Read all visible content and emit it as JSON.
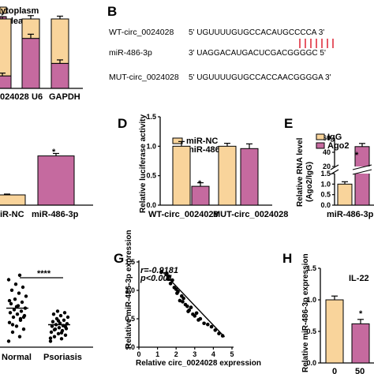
{
  "panel_letters": {
    "b": "B",
    "d": "D",
    "e": "E",
    "g": "G",
    "h": "H"
  },
  "colors": {
    "orange": "#f9d49b",
    "purple": "#c56a9f",
    "mismatch": "#e0303f",
    "stroke": "#000000"
  },
  "panel_a": {
    "legend": [
      "ytoplasm",
      "uclear"
    ],
    "xlabels": [
      "024028",
      "U6",
      "GAPDH"
    ],
    "chart_data": {
      "type": "bar",
      "categories": [
        "024028",
        "U6",
        "GAPDH"
      ],
      "series": [
        {
          "name": "uclear",
          "values": [
            0.18,
            0.72,
            0.36
          ]
        },
        {
          "name": "ytoplasm",
          "values": [
            0.82,
            0.28,
            0.64
          ]
        }
      ],
      "errors": [
        0.04,
        0.06,
        0.05
      ],
      "ylim": [
        0,
        1
      ]
    }
  },
  "panel_b": {
    "rows": [
      {
        "name": "WT-circ_0024028",
        "seq": "5' UGUUUUGUGCCACAUGCCCCA 3'"
      },
      {
        "name": "miR-486-3p",
        "seq": "3' UAGGACAUGACUCGACGGGGC 5'"
      },
      {
        "name": "MUT-circ_0024028",
        "seq": "5' UGUUUUGUGCCACCAACGGGGA 3'"
      }
    ]
  },
  "panel_c": {
    "xlabels": [
      "iR-NC",
      "miR-486-3p"
    ],
    "sig": "*",
    "chart_data": {
      "type": "bar",
      "categories": [
        "iR-NC",
        "miR-486-3p"
      ],
      "values": [
        0.25,
        1.2
      ],
      "errors": [
        0.02,
        0.06
      ]
    }
  },
  "panel_d": {
    "ylabel": "Relative luciferase activity",
    "legend": [
      "miR-NC",
      "miR-486-3p"
    ],
    "xlabels": [
      "WT-circ_0024028",
      "MUT-circ_0024028"
    ],
    "sig": "*",
    "chart_data": {
      "type": "bar",
      "categories": [
        "WT-circ_0024028",
        "MUT-circ_0024028"
      ],
      "series": [
        {
          "name": "miR-NC",
          "values": [
            1.0,
            1.0
          ]
        },
        {
          "name": "miR-486-3p",
          "values": [
            0.32,
            0.96
          ]
        }
      ],
      "errors": [
        [
          0.08,
          0.05
        ],
        [
          0.06,
          0.08
        ]
      ],
      "yticks": [
        "0.0",
        "0.5",
        "1.0",
        "1.5"
      ],
      "ylim": [
        0,
        1.5
      ]
    }
  },
  "panel_e": {
    "ylabel": "Relative RNA level",
    "ylabel2": "(Ago2/IgG)",
    "legend": [
      "IgG",
      "Ago2"
    ],
    "xlabel": "miR-486-3p",
    "sig": "*",
    "chart_data": {
      "type": "bar",
      "categories": [
        "miR-486-3p"
      ],
      "series": [
        {
          "name": "IgG",
          "values": [
            1.0
          ]
        },
        {
          "name": "Ago2",
          "values": [
            48
          ]
        }
      ],
      "errors": [
        0.08,
        4
      ],
      "yticks": [
        "0.0",
        "0.5",
        "1.0",
        "1.5",
        "20",
        "40",
        "60"
      ],
      "axis_break": [
        1.5,
        20
      ]
    }
  },
  "panel_f": {
    "xlabels": [
      "Normal",
      "Psoriasis"
    ],
    "sig": "****",
    "chart_data": {
      "type": "scatter",
      "categories": [
        "Normal",
        "Psoriasis"
      ],
      "series": [
        {
          "name": "Normal",
          "values": [
            0.2,
            0.35,
            0.5,
            0.6,
            0.7,
            0.82,
            0.9,
            1.0,
            1.05,
            1.1,
            1.15,
            1.2,
            1.25,
            1.3,
            1.38,
            1.45,
            1.5,
            1.6,
            1.7,
            1.8,
            1.9,
            2.0,
            2.1,
            2.25,
            2.4,
            0.75,
            1.0,
            1.35,
            1.55,
            0.95
          ]
        },
        {
          "name": "Psoriasis",
          "values": [
            0.2,
            0.28,
            0.35,
            0.4,
            0.45,
            0.5,
            0.55,
            0.6,
            0.62,
            0.65,
            0.7,
            0.72,
            0.75,
            0.78,
            0.8,
            0.85,
            0.9,
            0.95,
            1.0,
            1.05,
            1.1,
            1.15,
            1.2,
            0.3,
            0.48,
            0.58,
            0.68,
            0.88
          ]
        }
      ],
      "means": [
        1.3,
        0.75
      ]
    }
  },
  "panel_g": {
    "r": "r=-0.9181",
    "p": "p<0.001",
    "ylabel": "Relative miR-486-3p expression",
    "xlabel": "Relative circ_0024028 expression",
    "xticks": [
      "0",
      "1",
      "2",
      "3",
      "4",
      "5"
    ],
    "yticks": [
      "0.0",
      "0.5",
      "1.0",
      "1.5"
    ],
    "chart_data": {
      "type": "scatter",
      "x": [
        1.2,
        1.5,
        1.6,
        1.7,
        1.8,
        1.9,
        2.0,
        2.1,
        2.2,
        2.3,
        2.4,
        2.5,
        2.6,
        2.7,
        2.8,
        2.9,
        3.0,
        3.1,
        3.3,
        3.5,
        3.7,
        3.9,
        4.1,
        4.3,
        4.5,
        2.05,
        2.65,
        3.2,
        1.55,
        2.35
      ],
      "y": [
        1.32,
        1.3,
        1.25,
        1.12,
        1.18,
        1.05,
        1.02,
        0.98,
        0.82,
        0.9,
        0.86,
        0.75,
        0.72,
        0.65,
        0.7,
        0.58,
        0.55,
        0.6,
        0.5,
        0.42,
        0.4,
        0.36,
        0.3,
        0.24,
        0.2,
        0.95,
        0.63,
        0.48,
        1.2,
        0.8
      ],
      "trend": {
        "x": [
          1.2,
          4.6
        ],
        "y": [
          1.35,
          0.18
        ]
      },
      "xlim": [
        0,
        5
      ],
      "ylim": [
        0,
        1.5
      ]
    }
  },
  "panel_h": {
    "ylabel": "Relative miR-486-3p expression",
    "title": "IL-22",
    "xlabels": [
      "0",
      "50"
    ],
    "yticks": [
      "0.0",
      "0.5",
      "1.0",
      "1.5"
    ],
    "sig": "*",
    "chart_data": {
      "type": "bar",
      "categories": [
        "0",
        "50"
      ],
      "values": [
        1.0,
        0.62
      ],
      "errors": [
        0.06,
        0.07
      ],
      "ylim": [
        0,
        1.5
      ]
    }
  }
}
